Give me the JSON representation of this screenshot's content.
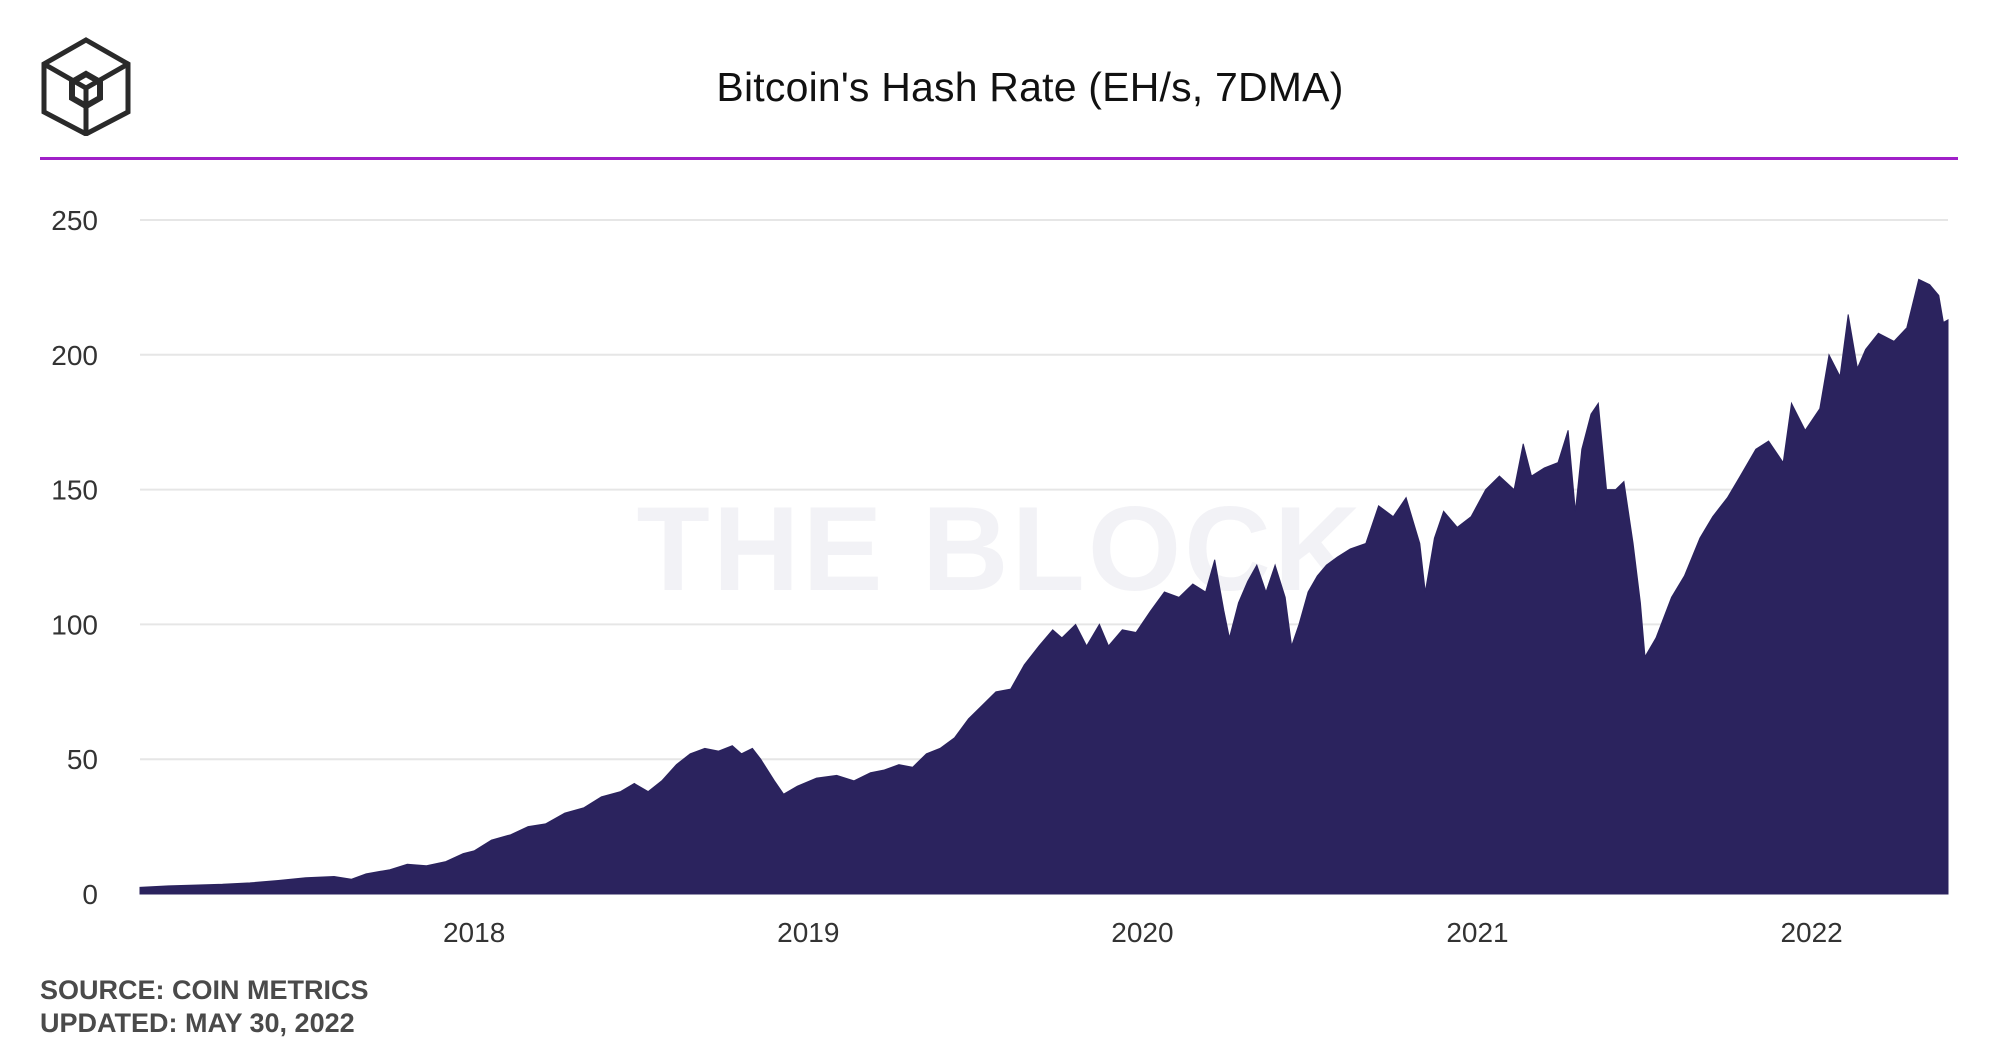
{
  "header": {
    "title": "Bitcoin's Hash Rate (EH/s, 7DMA)",
    "logo_icon": "the-block-cube-logo",
    "accent_color": "#a020c8"
  },
  "watermark": "THE BLOCK",
  "footer": {
    "source": "SOURCE: COIN METRICS",
    "updated": "UPDATED: MAY 30, 2022"
  },
  "chart_data": {
    "type": "area",
    "title": "Bitcoin's Hash Rate (EH/s, 7DMA)",
    "xlabel": "",
    "ylabel": "",
    "ylim": [
      0,
      250
    ],
    "xlim": [
      "2017-01-01",
      "2022-05-30"
    ],
    "yticks": [
      0,
      50,
      100,
      150,
      200,
      250
    ],
    "xticks": [
      {
        "date": "2018-01-01",
        "label": "2018"
      },
      {
        "date": "2019-01-01",
        "label": "2019"
      },
      {
        "date": "2020-01-01",
        "label": "2020"
      },
      {
        "date": "2021-01-01",
        "label": "2021"
      },
      {
        "date": "2022-01-01",
        "label": "2022"
      }
    ],
    "grid": true,
    "legend": "none",
    "fill_color": "#2b235e",
    "series": [
      {
        "points": [
          [
            "2017-01-01",
            2.5
          ],
          [
            "2017-02-01",
            3.0
          ],
          [
            "2017-03-01",
            3.3
          ],
          [
            "2017-04-01",
            3.6
          ],
          [
            "2017-05-01",
            4.1
          ],
          [
            "2017-06-01",
            5.0
          ],
          [
            "2017-07-01",
            6.0
          ],
          [
            "2017-08-01",
            6.5
          ],
          [
            "2017-08-20",
            5.5
          ],
          [
            "2017-09-05",
            7.5
          ],
          [
            "2017-10-01",
            9.0
          ],
          [
            "2017-10-20",
            11.0
          ],
          [
            "2017-11-10",
            10.5
          ],
          [
            "2017-12-01",
            12.0
          ],
          [
            "2017-12-20",
            15.0
          ],
          [
            "2018-01-01",
            16.0
          ],
          [
            "2018-01-20",
            20.0
          ],
          [
            "2018-02-10",
            22.0
          ],
          [
            "2018-03-01",
            25.0
          ],
          [
            "2018-03-20",
            26.0
          ],
          [
            "2018-04-10",
            30.0
          ],
          [
            "2018-05-01",
            32.0
          ],
          [
            "2018-05-20",
            36.0
          ],
          [
            "2018-06-10",
            38.0
          ],
          [
            "2018-06-25",
            41.0
          ],
          [
            "2018-07-10",
            38.0
          ],
          [
            "2018-07-25",
            42.0
          ],
          [
            "2018-08-10",
            48.0
          ],
          [
            "2018-08-25",
            52.0
          ],
          [
            "2018-09-10",
            54.0
          ],
          [
            "2018-09-25",
            53.0
          ],
          [
            "2018-10-10",
            55.0
          ],
          [
            "2018-10-20",
            52.0
          ],
          [
            "2018-11-01",
            54.0
          ],
          [
            "2018-11-10",
            50.0
          ],
          [
            "2018-11-25",
            42.0
          ],
          [
            "2018-12-05",
            37.0
          ],
          [
            "2018-12-20",
            40.0
          ],
          [
            "2019-01-10",
            43.0
          ],
          [
            "2019-02-01",
            44.0
          ],
          [
            "2019-02-20",
            42.0
          ],
          [
            "2019-03-10",
            45.0
          ],
          [
            "2019-03-25",
            46.0
          ],
          [
            "2019-04-10",
            48.0
          ],
          [
            "2019-04-25",
            47.0
          ],
          [
            "2019-05-10",
            52.0
          ],
          [
            "2019-05-25",
            54.0
          ],
          [
            "2019-06-10",
            58.0
          ],
          [
            "2019-06-25",
            65.0
          ],
          [
            "2019-07-10",
            70.0
          ],
          [
            "2019-07-25",
            75.0
          ],
          [
            "2019-08-10",
            76.0
          ],
          [
            "2019-08-25",
            85.0
          ],
          [
            "2019-09-10",
            92.0
          ],
          [
            "2019-09-25",
            98.0
          ],
          [
            "2019-10-05",
            95.0
          ],
          [
            "2019-10-20",
            100.0
          ],
          [
            "2019-11-01",
            92.0
          ],
          [
            "2019-11-15",
            100.0
          ],
          [
            "2019-11-25",
            92.0
          ],
          [
            "2019-12-10",
            98.0
          ],
          [
            "2019-12-25",
            97.0
          ],
          [
            "2020-01-10",
            105.0
          ],
          [
            "2020-01-25",
            112.0
          ],
          [
            "2020-02-10",
            110.0
          ],
          [
            "2020-02-25",
            115.0
          ],
          [
            "2020-03-10",
            112.0
          ],
          [
            "2020-03-20",
            124.0
          ],
          [
            "2020-03-30",
            105.0
          ],
          [
            "2020-04-05",
            95.0
          ],
          [
            "2020-04-15",
            108.0
          ],
          [
            "2020-04-25",
            116.0
          ],
          [
            "2020-05-05",
            122.0
          ],
          [
            "2020-05-15",
            112.0
          ],
          [
            "2020-05-25",
            122.0
          ],
          [
            "2020-06-05",
            110.0
          ],
          [
            "2020-06-12",
            92.0
          ],
          [
            "2020-06-20",
            100.0
          ],
          [
            "2020-06-30",
            112.0
          ],
          [
            "2020-07-10",
            118.0
          ],
          [
            "2020-07-20",
            122.0
          ],
          [
            "2020-08-01",
            125.0
          ],
          [
            "2020-08-15",
            128.0
          ],
          [
            "2020-09-01",
            130.0
          ],
          [
            "2020-09-15",
            144.0
          ],
          [
            "2020-10-01",
            140.0
          ],
          [
            "2020-10-15",
            147.0
          ],
          [
            "2020-10-30",
            130.0
          ],
          [
            "2020-11-05",
            112.0
          ],
          [
            "2020-11-15",
            132.0
          ],
          [
            "2020-11-25",
            142.0
          ],
          [
            "2020-12-10",
            136.0
          ],
          [
            "2020-12-25",
            140.0
          ],
          [
            "2021-01-10",
            150.0
          ],
          [
            "2021-01-25",
            155.0
          ],
          [
            "2021-02-10",
            150.0
          ],
          [
            "2021-02-20",
            167.0
          ],
          [
            "2021-03-01",
            155.0
          ],
          [
            "2021-03-15",
            158.0
          ],
          [
            "2021-03-30",
            160.0
          ],
          [
            "2021-04-10",
            172.0
          ],
          [
            "2021-04-18",
            142.0
          ],
          [
            "2021-04-25",
            165.0
          ],
          [
            "2021-05-05",
            178.0
          ],
          [
            "2021-05-13",
            182.0
          ],
          [
            "2021-05-22",
            150.0
          ],
          [
            "2021-06-01",
            150.0
          ],
          [
            "2021-06-10",
            153.0
          ],
          [
            "2021-06-20",
            130.0
          ],
          [
            "2021-06-28",
            108.0
          ],
          [
            "2021-07-03",
            88.0
          ],
          [
            "2021-07-15",
            95.0
          ],
          [
            "2021-08-01",
            110.0
          ],
          [
            "2021-08-15",
            118.0
          ],
          [
            "2021-09-01",
            132.0
          ],
          [
            "2021-09-15",
            140.0
          ],
          [
            "2021-10-01",
            147.0
          ],
          [
            "2021-10-15",
            155.0
          ],
          [
            "2021-11-01",
            165.0
          ],
          [
            "2021-11-15",
            168.0
          ],
          [
            "2021-12-01",
            160.0
          ],
          [
            "2021-12-10",
            182.0
          ],
          [
            "2021-12-25",
            172.0
          ],
          [
            "2022-01-10",
            180.0
          ],
          [
            "2022-01-20",
            200.0
          ],
          [
            "2022-02-01",
            192.0
          ],
          [
            "2022-02-10",
            215.0
          ],
          [
            "2022-02-20",
            195.0
          ],
          [
            "2022-03-01",
            202.0
          ],
          [
            "2022-03-15",
            208.0
          ],
          [
            "2022-04-01",
            205.0
          ],
          [
            "2022-04-15",
            210.0
          ],
          [
            "2022-04-28",
            228.0
          ],
          [
            "2022-05-10",
            226.0
          ],
          [
            "2022-05-20",
            222.0
          ],
          [
            "2022-05-25",
            212.0
          ],
          [
            "2022-05-30",
            213.0
          ]
        ]
      }
    ]
  }
}
